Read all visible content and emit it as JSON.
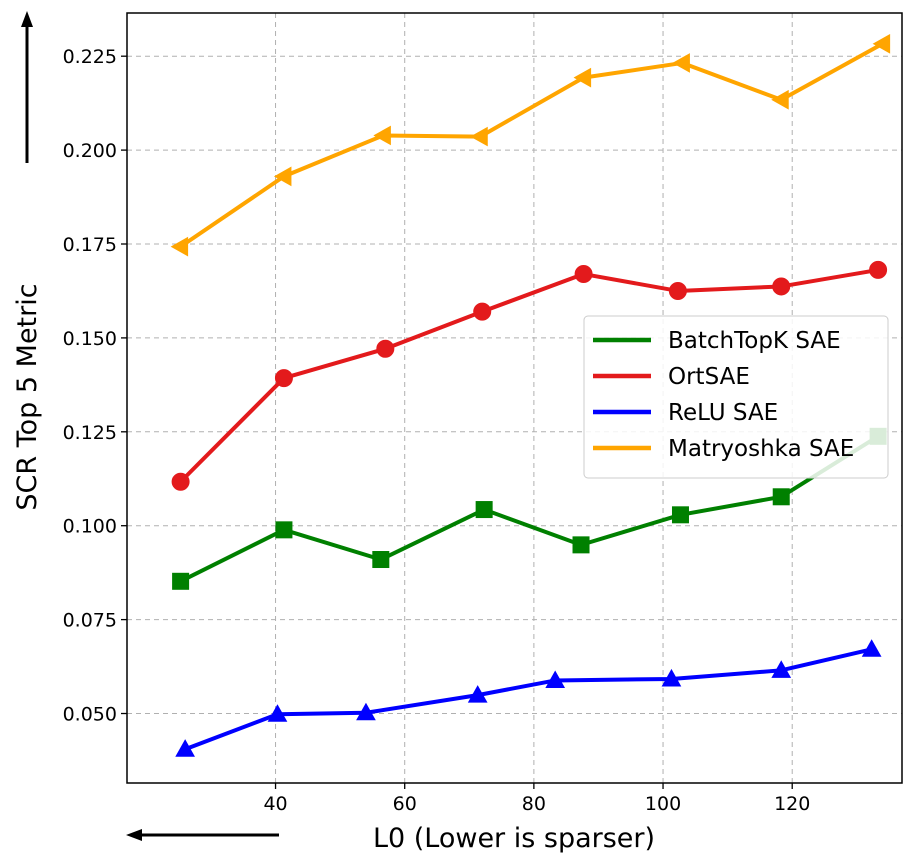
{
  "chart_data": {
    "type": "line",
    "title": "",
    "xlabel": "L0 (Lower is sparser)",
    "ylabel": "SCR Top 5 Metric",
    "xlim": [
      17,
      137
    ],
    "ylim": [
      0.0315,
      0.2365
    ],
    "xticks": [
      40,
      60,
      80,
      100,
      120
    ],
    "yticks": [
      0.05,
      0.075,
      0.1,
      0.125,
      0.15,
      0.175,
      0.2,
      0.225
    ],
    "xtick_labels": [
      "40",
      "60",
      "80",
      "100",
      "120"
    ],
    "ytick_labels": [
      "0.050",
      "0.075",
      "0.100",
      "0.125",
      "0.150",
      "0.175",
      "0.200",
      "0.225"
    ],
    "grid": true,
    "legend_position": "center-right",
    "series": [
      {
        "name": "BatchTopK SAE",
        "color": "#008000",
        "marker": "square",
        "x": [
          25.3,
          41.3,
          56.3,
          72.3,
          87.3,
          102.7,
          118.3,
          133.3
        ],
        "y": [
          0.0852,
          0.0989,
          0.091,
          0.1043,
          0.0949,
          0.1029,
          0.1077,
          0.1238
        ]
      },
      {
        "name": "OrtSAE",
        "color": "#e31a1c",
        "marker": "circle",
        "x": [
          25.3,
          41.3,
          57.0,
          72.0,
          87.7,
          102.3,
          118.3,
          133.3
        ],
        "y": [
          0.1117,
          0.1393,
          0.1471,
          0.157,
          0.167,
          0.1625,
          0.1637,
          0.1681
        ]
      },
      {
        "name": "ReLU SAE",
        "color": "#0000ff",
        "marker": "triangle-up",
        "x": [
          26.0,
          40.3,
          54.0,
          71.3,
          83.3,
          101.3,
          118.3,
          132.3
        ],
        "y": [
          0.0405,
          0.0498,
          0.0502,
          0.0549,
          0.0588,
          0.0592,
          0.0615,
          0.0671
        ]
      },
      {
        "name": "Matryoshka SAE",
        "color": "#ffa500",
        "marker": "triangle-left",
        "x": [
          25.3,
          41.3,
          56.7,
          71.7,
          87.7,
          103.0,
          118.3,
          134.0
        ],
        "y": [
          0.1743,
          0.193,
          0.2039,
          0.2036,
          0.2193,
          0.2232,
          0.2134,
          0.2283
        ]
      }
    ],
    "arrows": {
      "y_axis": "up",
      "x_axis": "left"
    }
  }
}
